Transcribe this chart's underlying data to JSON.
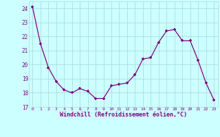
{
  "x": [
    0,
    1,
    2,
    3,
    4,
    5,
    6,
    7,
    8,
    9,
    10,
    11,
    12,
    13,
    14,
    15,
    16,
    17,
    18,
    19,
    20,
    21,
    22,
    23
  ],
  "y": [
    24.1,
    21.5,
    19.8,
    18.8,
    18.2,
    18.0,
    18.3,
    18.1,
    17.6,
    17.6,
    18.5,
    18.6,
    18.7,
    19.3,
    20.4,
    20.5,
    21.6,
    22.4,
    22.5,
    21.7,
    21.7,
    20.3,
    18.7,
    17.5
  ],
  "line_color": "#800080",
  "marker": "+",
  "bg_color": "#ccffff",
  "grid_color": "#aadddd",
  "xlabel": "Windchill (Refroidissement éolien,°C)",
  "xlabel_color": "#800080",
  "tick_color": "#800080",
  "ylim": [
    17,
    24.5
  ],
  "yticks": [
    17,
    18,
    19,
    20,
    21,
    22,
    23,
    24
  ],
  "xlim": [
    -0.5,
    23.5
  ],
  "xticks": [
    0,
    1,
    2,
    3,
    4,
    5,
    6,
    7,
    8,
    9,
    10,
    11,
    12,
    13,
    14,
    15,
    16,
    17,
    18,
    19,
    20,
    21,
    22,
    23
  ]
}
